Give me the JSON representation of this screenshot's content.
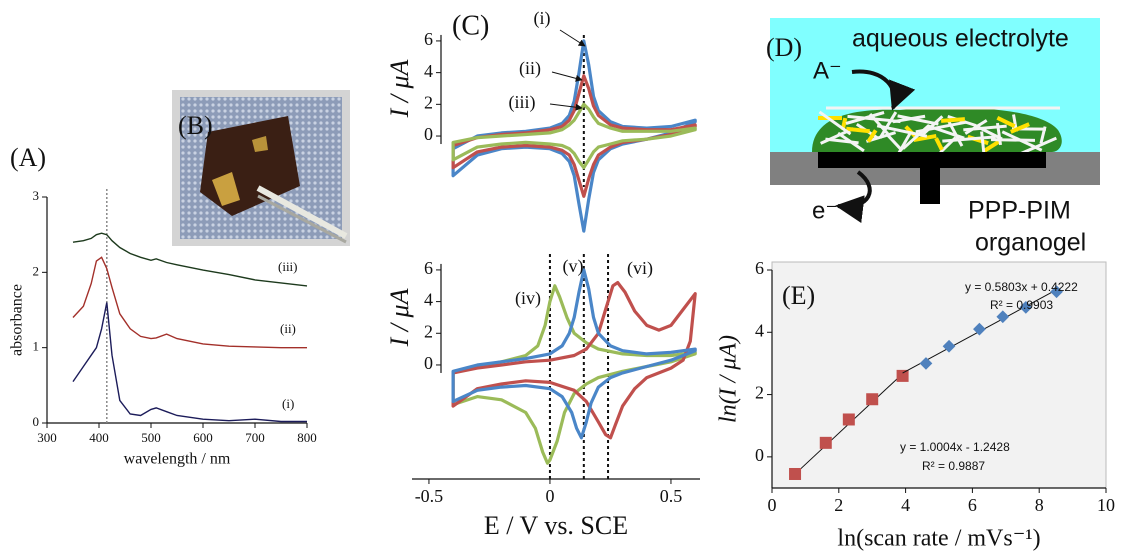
{
  "chart_data": [
    {
      "type": "line",
      "panel": "(A)",
      "xlabel": "wavelength / nm",
      "ylabel": "absorbance",
      "x": [
        350,
        370,
        385,
        395,
        405,
        415,
        425,
        440,
        460,
        480,
        500,
        510,
        530,
        550,
        600,
        650,
        700,
        750,
        800
      ],
      "xlim": [
        300,
        800
      ],
      "ylim": [
        0,
        3
      ],
      "xticks": [
        300,
        400,
        500,
        600,
        700,
        800
      ],
      "yticks": [
        0,
        1,
        2,
        3
      ],
      "vline": 415,
      "series": [
        {
          "name": "(i)",
          "color": "#1c1c5a",
          "values": [
            0.55,
            0.75,
            0.9,
            1.0,
            1.25,
            1.6,
            0.9,
            0.3,
            0.12,
            0.1,
            0.18,
            0.2,
            0.15,
            0.1,
            0.05,
            0.03,
            0.05,
            0.02,
            0.02
          ]
        },
        {
          "name": "(ii)",
          "color": "#a3302a",
          "values": [
            1.4,
            1.55,
            1.85,
            2.15,
            2.2,
            2.05,
            1.8,
            1.45,
            1.25,
            1.15,
            1.12,
            1.13,
            1.18,
            1.12,
            1.05,
            1.02,
            1.01,
            1.0,
            1.0
          ]
        },
        {
          "name": "(iii)",
          "color": "#1d3a1d",
          "values": [
            2.4,
            2.42,
            2.45,
            2.5,
            2.52,
            2.5,
            2.42,
            2.33,
            2.25,
            2.2,
            2.16,
            2.18,
            2.13,
            2.1,
            2.03,
            1.97,
            1.9,
            1.86,
            1.82
          ]
        }
      ]
    },
    {
      "type": "cv",
      "panel": "(C)",
      "ylabel": "I / μA",
      "xlim": [
        -0.57,
        0.62
      ],
      "ylim": [
        -7,
        6.5
      ],
      "yticks": [
        0,
        2,
        4,
        6
      ],
      "vlines": [
        0.14
      ],
      "x": [
        -0.4,
        -0.3,
        -0.2,
        -0.1,
        0,
        0.05,
        0.08,
        0.1,
        0.12,
        0.14,
        0.16,
        0.18,
        0.2,
        0.25,
        0.3,
        0.4,
        0.5,
        0.6,
        0.6,
        0.5,
        0.4,
        0.3,
        0.25,
        0.2,
        0.18,
        0.16,
        0.14,
        0.12,
        0.1,
        0.08,
        0.05,
        0,
        -0.1,
        -0.2,
        -0.3,
        -0.4
      ],
      "series": [
        {
          "name": "(i)",
          "color": "#4a86c8",
          "values": [
            -0.8,
            0.0,
            0.2,
            0.3,
            0.5,
            0.8,
            1.3,
            2.2,
            4.0,
            6.0,
            4.5,
            2.5,
            1.6,
            0.9,
            0.6,
            0.5,
            0.6,
            1.0,
            0.9,
            0.2,
            -0.2,
            -0.5,
            -0.8,
            -1.5,
            -2.3,
            -4.0,
            -6.0,
            -4.3,
            -2.5,
            -1.6,
            -1.1,
            -0.8,
            -0.7,
            -0.8,
            -1.2,
            -2.5
          ]
        },
        {
          "name": "(ii)",
          "color": "#c0504d",
          "values": [
            -0.6,
            -0.1,
            0.1,
            0.2,
            0.4,
            0.6,
            1.0,
            1.6,
            2.7,
            3.8,
            3.0,
            1.9,
            1.3,
            0.7,
            0.5,
            0.4,
            0.4,
            0.7,
            0.6,
            0.1,
            -0.2,
            -0.4,
            -0.7,
            -1.2,
            -1.8,
            -2.7,
            -3.8,
            -2.8,
            -1.8,
            -1.2,
            -0.9,
            -0.7,
            -0.6,
            -0.7,
            -1.0,
            -2.0
          ]
        },
        {
          "name": "(iii)",
          "color": "#9bbb59",
          "values": [
            -0.4,
            -0.1,
            0.0,
            0.1,
            0.2,
            0.4,
            0.7,
            1.0,
            1.5,
            2.0,
            1.7,
            1.2,
            0.8,
            0.5,
            0.3,
            0.3,
            0.3,
            0.5,
            0.4,
            0.0,
            -0.2,
            -0.3,
            -0.5,
            -0.7,
            -1.0,
            -1.5,
            -2.0,
            -1.6,
            -1.1,
            -0.8,
            -0.6,
            -0.5,
            -0.4,
            -0.5,
            -0.7,
            -1.5
          ]
        }
      ]
    },
    {
      "type": "cv",
      "xlabel": "E / V vs. SCE",
      "ylabel": "I / μA",
      "xlim": [
        -0.57,
        0.62
      ],
      "ylim": [
        -7.2,
        6.5
      ],
      "xticks": [
        -0.5,
        0,
        0.5
      ],
      "yticks": [
        0,
        2,
        4,
        6
      ],
      "vlines": [
        0,
        0.14,
        0.24
      ],
      "series": [
        {
          "name": "(iv)",
          "color": "#9bbb59",
          "x": [
            -0.4,
            -0.3,
            -0.2,
            -0.1,
            -0.05,
            -0.02,
            0,
            0.02,
            0.04,
            0.07,
            0.1,
            0.15,
            0.2,
            0.3,
            0.4,
            0.5,
            0.6,
            0.6,
            0.5,
            0.4,
            0.3,
            0.2,
            0.15,
            0.1,
            0.06,
            0.03,
            0.0,
            -0.01,
            -0.03,
            -0.06,
            -0.1,
            -0.2,
            -0.3,
            -0.4
          ],
          "values": [
            -0.5,
            -0.1,
            0.2,
            0.6,
            1.2,
            2.5,
            4.0,
            5.0,
            4.3,
            3.0,
            2.0,
            1.4,
            1.0,
            0.7,
            0.6,
            0.6,
            0.8,
            0.7,
            0.2,
            -0.1,
            -0.4,
            -0.8,
            -1.2,
            -1.8,
            -3.0,
            -4.8,
            -6.0,
            -6.2,
            -5.5,
            -4.0,
            -3.0,
            -2.2,
            -2.0,
            -2.5
          ]
        },
        {
          "name": "(vi)",
          "color": "#c0504d",
          "x": [
            -0.4,
            -0.3,
            -0.2,
            -0.1,
            0,
            0.1,
            0.15,
            0.2,
            0.23,
            0.26,
            0.28,
            0.31,
            0.35,
            0.4,
            0.45,
            0.5,
            0.55,
            0.6,
            0.58,
            0.55,
            0.5,
            0.4,
            0.35,
            0.3,
            0.27,
            0.25,
            0.23,
            0.2,
            0.15,
            0.1,
            0,
            -0.1,
            -0.2,
            -0.3,
            -0.4
          ],
          "values": [
            -0.5,
            -0.2,
            0.0,
            0.2,
            0.3,
            0.6,
            1.0,
            2.0,
            3.5,
            5.0,
            5.2,
            4.6,
            3.4,
            2.5,
            2.2,
            2.5,
            3.5,
            4.5,
            1.5,
            0.3,
            -0.2,
            -0.8,
            -1.5,
            -2.6,
            -3.8,
            -4.6,
            -4.4,
            -3.6,
            -2.3,
            -1.6,
            -1.1,
            -1.0,
            -1.2,
            -1.5,
            -2.6
          ]
        },
        {
          "name": "(v)",
          "color": "#4a86c8",
          "x": [
            -0.4,
            -0.3,
            -0.2,
            -0.1,
            0,
            0.05,
            0.08,
            0.1,
            0.12,
            0.14,
            0.16,
            0.18,
            0.2,
            0.25,
            0.3,
            0.4,
            0.5,
            0.6,
            0.6,
            0.5,
            0.4,
            0.3,
            0.25,
            0.2,
            0.17,
            0.15,
            0.13,
            0.11,
            0.09,
            0.05,
            0,
            -0.1,
            -0.2,
            -0.3,
            -0.4
          ],
          "values": [
            -0.4,
            0.0,
            0.2,
            0.4,
            0.7,
            1.2,
            2.0,
            3.0,
            4.6,
            6.0,
            4.8,
            3.0,
            2.0,
            1.2,
            0.9,
            0.7,
            0.8,
            1.0,
            0.9,
            0.3,
            -0.1,
            -0.5,
            -0.8,
            -1.4,
            -2.4,
            -3.6,
            -4.6,
            -4.0,
            -3.0,
            -2.0,
            -1.5,
            -1.3,
            -1.4,
            -1.6,
            -2.3
          ]
        }
      ]
    },
    {
      "type": "scatter",
      "panel": "(E)",
      "xlabel": "ln(scan rate / mVs⁻¹)",
      "ylabel": "ln(I / μA)",
      "xlim": [
        0,
        10
      ],
      "ylim": [
        -1,
        6
      ],
      "xticks": [
        0,
        2,
        4,
        6,
        8,
        10
      ],
      "yticks": [
        0,
        2,
        4,
        6
      ],
      "series": [
        {
          "color": "#c0504d",
          "marker": "square",
          "x": [
            0.69,
            1.61,
            2.3,
            3.0,
            3.91
          ],
          "values": [
            -0.55,
            0.45,
            1.2,
            1.85,
            2.6
          ],
          "fit": {
            "slope": 1.0004,
            "intercept": -1.2428,
            "equation": "y = 1.0004x - 1.2428",
            "r2": "R² = 0.9887"
          }
        },
        {
          "color": "#4f81bd",
          "marker": "diamond",
          "x": [
            4.61,
            5.3,
            6.21,
            6.91,
            7.6,
            8.52
          ],
          "values": [
            3.0,
            3.55,
            4.1,
            4.5,
            4.8,
            5.3
          ],
          "fit": {
            "slope": 0.5803,
            "intercept": 0.4222,
            "equation": "y = 0.5803x + 0.4222",
            "r2": "R² = 0.9903"
          }
        }
      ]
    }
  ],
  "photo": {
    "label": "(B)"
  },
  "diagram": {
    "label": "(D)",
    "medium": "aqueous electrolyte",
    "anion": "A⁻",
    "electron": "e⁻",
    "film": [
      "PPP-PIM",
      "organogel"
    ]
  }
}
